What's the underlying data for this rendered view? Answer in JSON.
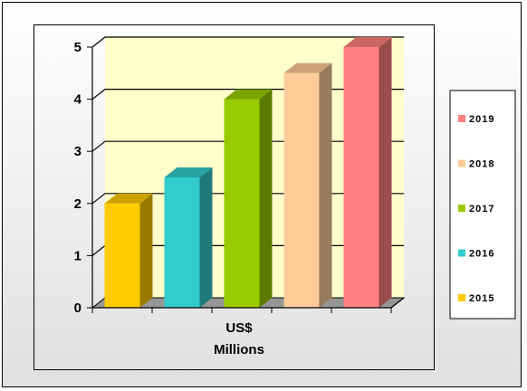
{
  "chart_data": {
    "type": "bar",
    "style": "3d-column",
    "title": "",
    "xlabel": "US$\nMillions",
    "ylabel": "",
    "ylim": [
      0,
      5
    ],
    "yticks": [
      0,
      1,
      2,
      3,
      4,
      5
    ],
    "grid": true,
    "legend": "right",
    "series": [
      {
        "name": "2015",
        "value": 2.0,
        "color": "#FFCC00"
      },
      {
        "name": "2016",
        "value": 2.5,
        "color": "#33CCCC"
      },
      {
        "name": "2017",
        "value": 4.0,
        "color": "#99CC00"
      },
      {
        "name": "2018",
        "value": 4.5,
        "color": "#FFCC99"
      },
      {
        "name": "2019",
        "value": 5.0,
        "color": "#FF8080"
      }
    ],
    "colors": {
      "wall": "#FFFFCC",
      "floor": "#969696",
      "frame_gradient_light": "#ffffff",
      "frame_gradient_dark": "#e0e0e0"
    }
  }
}
